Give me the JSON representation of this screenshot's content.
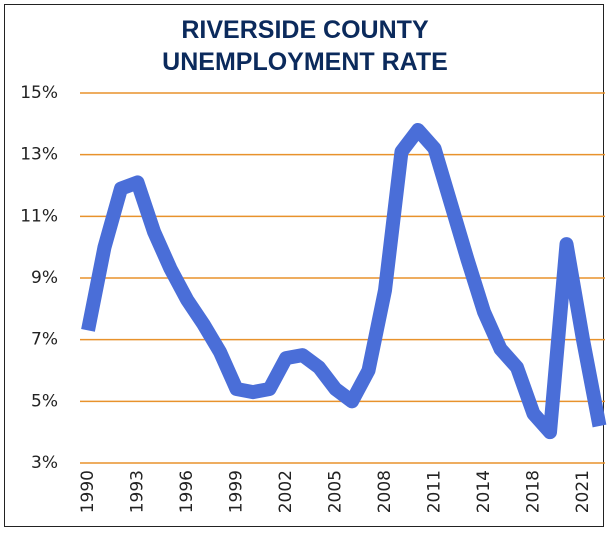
{
  "chart_data": {
    "type": "line",
    "title": "RIVERSIDE COUNTY UNEMPLOYMENT RATE",
    "categories": [
      "1990",
      null,
      null,
      "1993",
      null,
      null,
      "1996",
      null,
      null,
      "1999",
      null,
      null,
      "2002",
      null,
      null,
      "2005",
      null,
      null,
      "2008",
      null,
      null,
      "2011",
      null,
      null,
      "2014",
      null,
      null,
      "2018",
      null,
      null,
      "2021",
      null
    ],
    "series": [
      {
        "name": "Unemployment rate",
        "color": "#4a6ed8",
        "values": [
          7.3,
          10.0,
          11.9,
          12.1,
          10.5,
          9.3,
          8.3,
          7.5,
          6.6,
          5.4,
          5.3,
          5.4,
          6.4,
          6.5,
          6.1,
          5.4,
          5.0,
          6.0,
          8.6,
          13.1,
          13.8,
          13.2,
          11.4,
          9.6,
          7.9,
          6.7,
          6.1,
          4.6,
          4.0,
          10.1,
          7.0,
          4.2
        ]
      }
    ],
    "ylim": [
      3,
      15
    ],
    "yticks": [
      {
        "value": 3,
        "label": "3%"
      },
      {
        "value": 5,
        "label": "5%"
      },
      {
        "value": 7,
        "label": "7%"
      },
      {
        "value": 9,
        "label": "9%"
      },
      {
        "value": 11,
        "label": "11%"
      },
      {
        "value": 13,
        "label": "13%"
      },
      {
        "value": 15,
        "label": "15%"
      }
    ],
    "grid": true,
    "grid_color": "#e8922c"
  }
}
